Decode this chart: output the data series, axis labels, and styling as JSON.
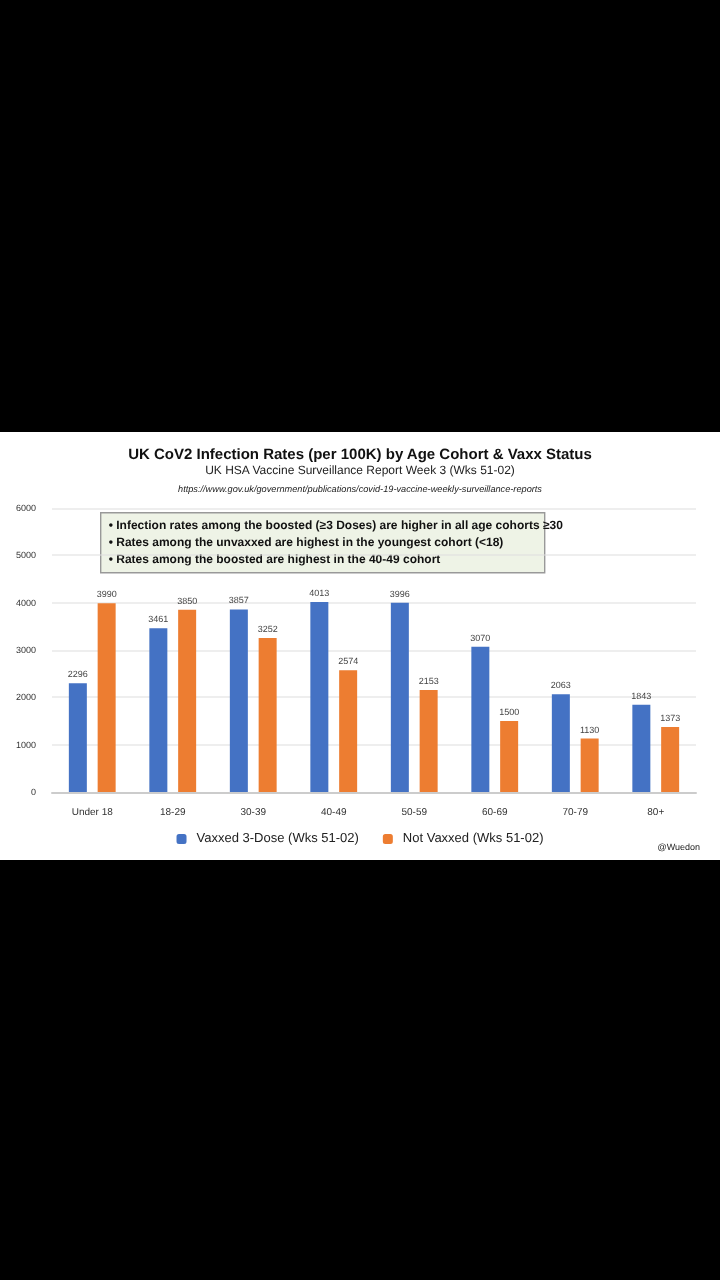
{
  "chart_data": {
    "type": "bar",
    "title": "UK CoV2 Infection Rates (per 100K) by Age Cohort & Vaxx Status",
    "subtitle": "UK HSA Vaccine Surveillance Report Week 3 (Wks 51-02)",
    "annotations": [
      "https://www.gov.uk/government/publications/covid-19-vaccine-weekly-surveillance-reports",
      "• Infection rates among the boosted (≥3 Doses) are higher in all age cohorts ≥30",
      "• Rates among the unvaxxed are highest in the youngest cohort (<18)",
      "• Rates among the boosted are highest in the 40-49 cohort",
      "@Wuedon"
    ],
    "categories": [
      "Under 18",
      "18-29",
      "30-39",
      "40-49",
      "50-59",
      "60-69",
      "70-79",
      "80+"
    ],
    "series": [
      {
        "name": "Vaxxed 3-Dose (Wks 51-02)",
        "color": "#4472c4",
        "values": [
          2296,
          3461,
          3857,
          4013,
          3996,
          3070,
          2063,
          1843
        ]
      },
      {
        "name": "Not Vaxxed (Wks 51-02)",
        "color": "#ed7d31",
        "values": [
          3990,
          3850,
          3252,
          2574,
          2153,
          1500,
          1130,
          1373
        ]
      }
    ],
    "ylim": [
      0,
      6000
    ],
    "yticks": [
      0,
      1000,
      2000,
      3000,
      4000,
      5000,
      6000
    ],
    "grid": "y",
    "legend": "bottom",
    "data_labels": true
  }
}
